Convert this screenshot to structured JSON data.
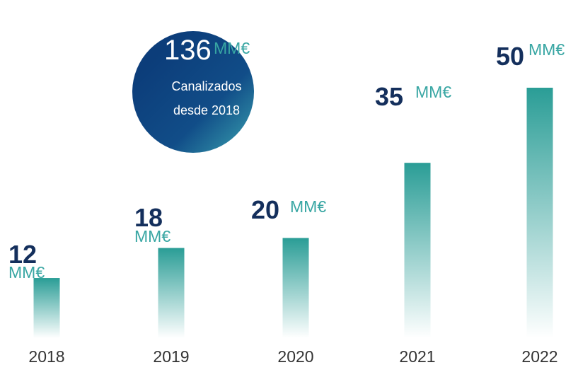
{
  "chart_data": {
    "type": "bar",
    "categories": [
      "2018",
      "2019",
      "2020",
      "2021",
      "2022"
    ],
    "values": [
      12,
      18,
      20,
      35,
      50
    ],
    "unit": "MM€",
    "color": "#2a9d96",
    "total": 136,
    "description": [
      "Canalizados",
      "desde 2018"
    ]
  }
}
